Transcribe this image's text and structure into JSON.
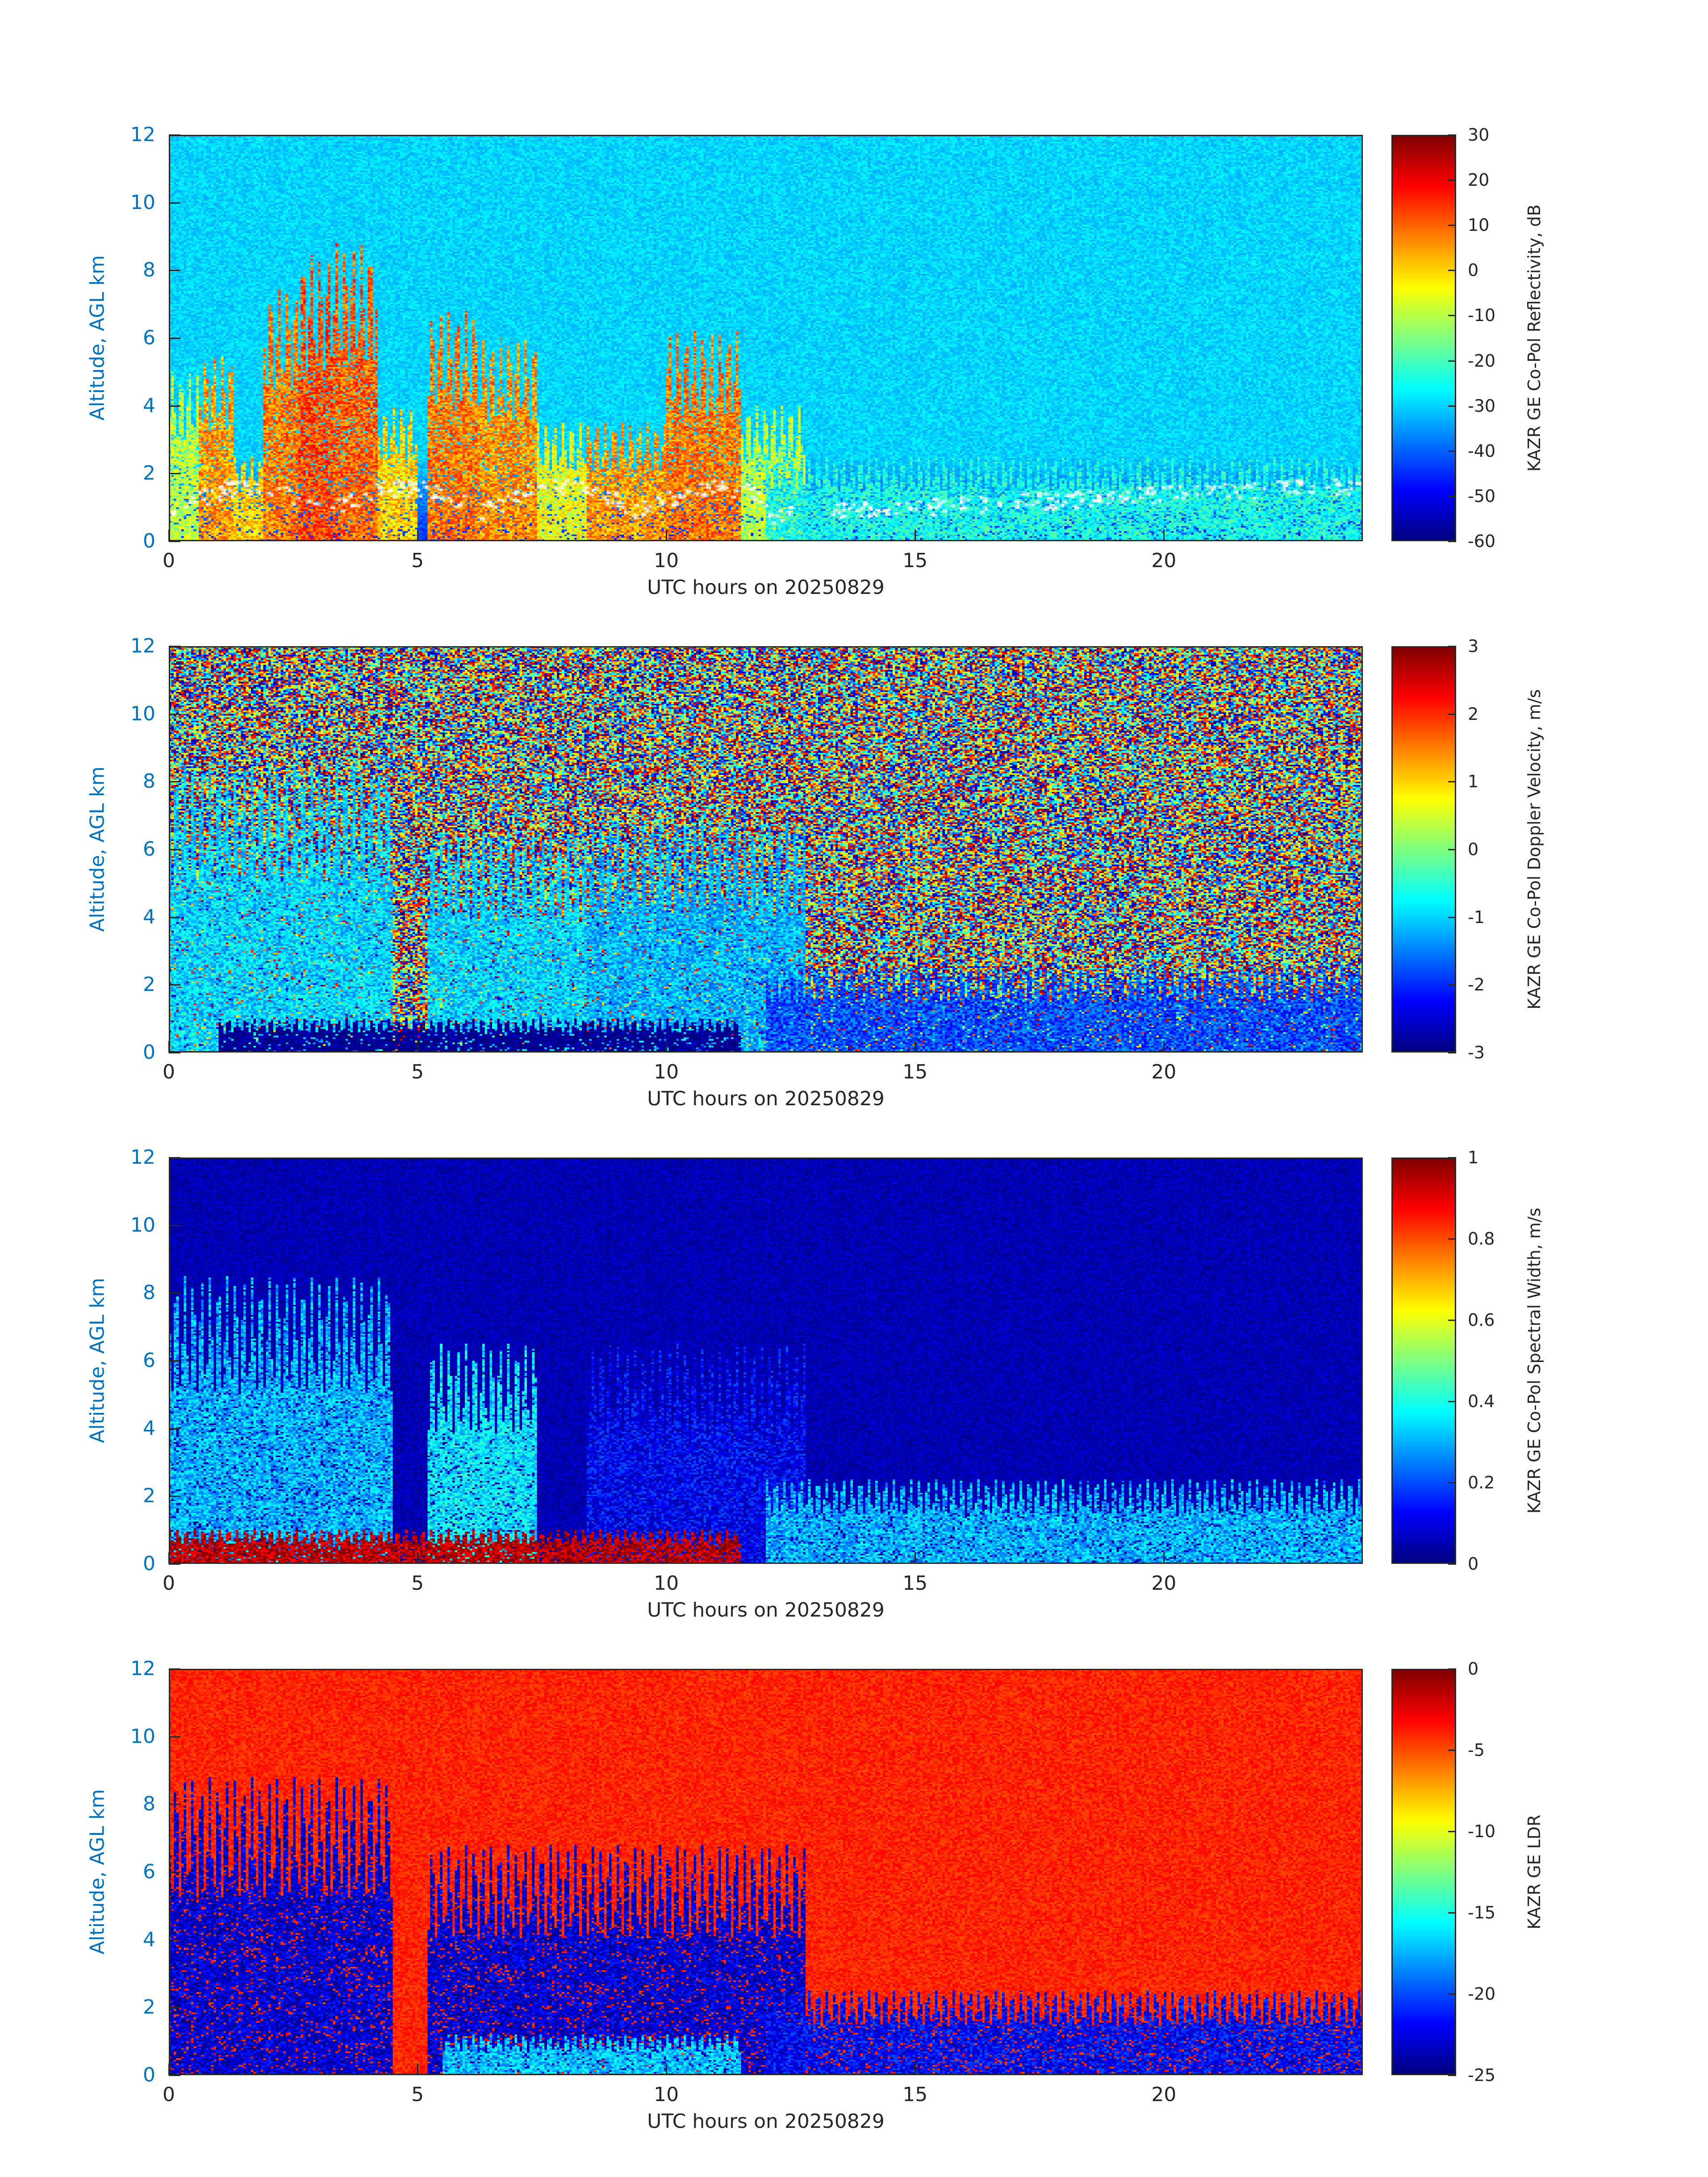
{
  "chart_data": [
    {
      "type": "heatmap",
      "field": "reflectivity",
      "title": "",
      "xlabel": "UTC hours on 20250829",
      "ylabel": "Altitude, AGL km",
      "xlim": [
        0,
        24
      ],
      "ylim": [
        0,
        12
      ],
      "xticks": [
        0,
        5,
        10,
        15,
        20
      ],
      "yticks": [
        0,
        2,
        4,
        6,
        8,
        10,
        12
      ],
      "colorbar": {
        "label": "KAZR GE Co-Pol Reflectivity, dB",
        "range": [
          -60,
          30
        ],
        "ticks": [
          30,
          20,
          10,
          0,
          -10,
          -20,
          -30,
          -40,
          -50,
          -60
        ],
        "colormap": "jet"
      },
      "background_value": -30,
      "cloud_base_markers": "white dots",
      "features": [
        {
          "x_range": [
            0.0,
            0.6
          ],
          "top_km": 5.0,
          "value": -10
        },
        {
          "x_range": [
            0.6,
            1.3
          ],
          "top_km": 5.5,
          "value": 5
        },
        {
          "x_range": [
            1.3,
            1.9
          ],
          "top_km": 2.5,
          "value": 0
        },
        {
          "x_range": [
            1.9,
            2.6
          ],
          "top_km": 7.5,
          "value": 8
        },
        {
          "x_range": [
            2.6,
            3.3
          ],
          "top_km": 8.5,
          "value": 12
        },
        {
          "x_range": [
            3.3,
            4.2
          ],
          "top_km": 8.8,
          "value": 10
        },
        {
          "x_range": [
            4.2,
            5.0
          ],
          "top_km": 4.0,
          "value": 0
        },
        {
          "x_range": [
            5.2,
            6.2
          ],
          "top_km": 6.8,
          "value": 8
        },
        {
          "x_range": [
            6.2,
            7.4
          ],
          "top_km": 6.0,
          "value": 6
        },
        {
          "x_range": [
            7.4,
            8.4
          ],
          "top_km": 3.5,
          "value": -5
        },
        {
          "x_range": [
            8.4,
            10.0
          ],
          "top_km": 3.5,
          "value": 5
        },
        {
          "x_range": [
            10.0,
            11.5
          ],
          "top_km": 6.2,
          "value": 8
        },
        {
          "x_range": [
            11.5,
            12.8
          ],
          "top_km": 4.0,
          "value": -10
        },
        {
          "x_range": [
            12.0,
            24.0
          ],
          "top_km": 2.5,
          "value": -25
        }
      ]
    },
    {
      "type": "heatmap",
      "field": "doppler_velocity",
      "title": "",
      "xlabel": "UTC hours on 20250829",
      "ylabel": "Altitude, AGL km",
      "xlim": [
        0,
        24
      ],
      "ylim": [
        0,
        12
      ],
      "xticks": [
        0,
        5,
        10,
        15,
        20
      ],
      "yticks": [
        0,
        2,
        4,
        6,
        8,
        10,
        12
      ],
      "colorbar": {
        "label": "KAZR GE Co-Pol Doppler Velocity, m/s",
        "range": [
          -3,
          3
        ],
        "ticks": [
          3,
          2,
          1,
          0,
          -1,
          -2,
          -3
        ],
        "colormap": "jet"
      },
      "background_value": "noise",
      "features": [
        {
          "x_range": [
            0.0,
            4.5
          ],
          "top_km": 8.5,
          "value": -1
        },
        {
          "x_range": [
            5.2,
            8.4
          ],
          "top_km": 6.5,
          "value": -1
        },
        {
          "x_range": [
            8.4,
            12.8
          ],
          "top_km": 6.8,
          "value": -1.2
        },
        {
          "x_range": [
            12.0,
            24.0
          ],
          "top_km": 2.5,
          "value": -1.8
        },
        {
          "x_range": [
            1.0,
            11.5
          ],
          "top_km": 1.0,
          "value": -3
        }
      ]
    },
    {
      "type": "heatmap",
      "field": "spectral_width",
      "title": "",
      "xlabel": "UTC hours on 20250829",
      "ylabel": "Altitude, AGL km",
      "xlim": [
        0,
        24
      ],
      "ylim": [
        0,
        12
      ],
      "xticks": [
        0,
        5,
        10,
        15,
        20
      ],
      "yticks": [
        0,
        2,
        4,
        6,
        8,
        10,
        12
      ],
      "colorbar": {
        "label": "KAZR GE Co-Pol Spectral Width, m/s",
        "range": [
          0,
          1
        ],
        "ticks": [
          1,
          0.8,
          0.6,
          0.4,
          0.2,
          0
        ],
        "colormap": "jet"
      },
      "background_value": 0.05,
      "features": [
        {
          "x_range": [
            0.0,
            4.5
          ],
          "top_km": 8.5,
          "value": 0.3
        },
        {
          "x_range": [
            5.2,
            7.4
          ],
          "top_km": 6.5,
          "value": 0.35
        },
        {
          "x_range": [
            8.4,
            12.8
          ],
          "top_km": 6.5,
          "value": 0.12
        },
        {
          "x_range": [
            12.0,
            24.0
          ],
          "top_km": 2.5,
          "value": 0.3
        },
        {
          "x_range": [
            0.0,
            11.5
          ],
          "top_km": 1.0,
          "value": 0.95
        }
      ]
    },
    {
      "type": "heatmap",
      "field": "ldr",
      "title": "",
      "xlabel": "UTC hours on 20250829",
      "ylabel": "Altitude, AGL km",
      "xlim": [
        0,
        24
      ],
      "ylim": [
        0,
        12
      ],
      "xticks": [
        0,
        5,
        10,
        15,
        20
      ],
      "yticks": [
        0,
        2,
        4,
        6,
        8,
        10,
        12
      ],
      "colorbar": {
        "label": "KAZR GE LDR",
        "range": [
          -25,
          0
        ],
        "ticks": [
          0,
          -5,
          -10,
          -15,
          -20,
          -25
        ],
        "colormap": "jet"
      },
      "background_value": -4,
      "features": [
        {
          "x_range": [
            0.0,
            4.5
          ],
          "top_km": 8.8,
          "value": -23
        },
        {
          "x_range": [
            5.2,
            8.4
          ],
          "top_km": 6.8,
          "value": -23
        },
        {
          "x_range": [
            8.4,
            12.8
          ],
          "top_km": 6.8,
          "value": -23
        },
        {
          "x_range": [
            12.0,
            24.0
          ],
          "top_km": 2.5,
          "value": -22
        },
        {
          "x_range": [
            5.5,
            11.5
          ],
          "top_km": 1.2,
          "value": -17
        }
      ]
    }
  ]
}
